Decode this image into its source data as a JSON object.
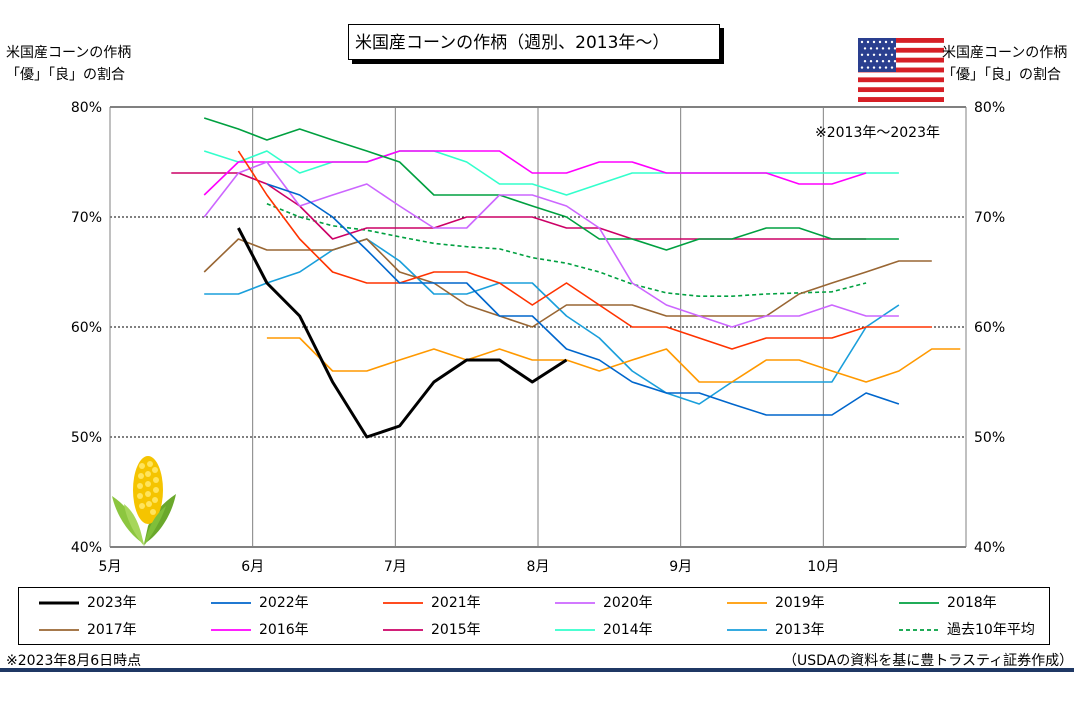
{
  "title": "米国産コーンの作柄（週別、2013年～）",
  "left_axis_title": [
    "米国産コーンの作柄",
    "「優」「良」の割合"
  ],
  "right_axis_title": [
    "米国産コーンの作柄",
    "「優」「良」の割合"
  ],
  "range_note": "※2013年～2023年",
  "asof_note": "※2023年8月6日時点",
  "source_note": "（USDAの資料を基に豊トラスティ証券作成）",
  "flag_icon": "us-flag-icon",
  "corn_icon": "corn-icon",
  "chart_data": {
    "type": "line",
    "title": "米国産コーンの作柄（週別、2013年～）",
    "xlabel": "",
    "ylabel": "米国産コーンの作柄「優」「良」の割合",
    "x_unit": "month",
    "xlim": [
      5,
      11
    ],
    "x_ticks": [
      5,
      6,
      7,
      8,
      9,
      10
    ],
    "x_tick_labels": [
      "5月",
      "6月",
      "7月",
      "8月",
      "9月",
      "10月"
    ],
    "ylim": [
      40,
      80
    ],
    "y_ticks": [
      40,
      50,
      60,
      70,
      80
    ],
    "y_tick_labels": [
      "40%",
      "50%",
      "60%",
      "70%",
      "80%"
    ],
    "grid": true,
    "series": [
      {
        "name": "2023年",
        "color": "#000000",
        "width": 3,
        "dash": false,
        "points": [
          [
            5.9,
            69
          ],
          [
            6.1,
            64
          ],
          [
            6.33,
            61
          ],
          [
            6.56,
            55
          ],
          [
            6.8,
            50
          ],
          [
            7.03,
            51
          ],
          [
            7.27,
            55
          ],
          [
            7.5,
            57
          ],
          [
            7.73,
            57
          ],
          [
            7.96,
            55
          ],
          [
            8.2,
            57
          ]
        ]
      },
      {
        "name": "2022年",
        "color": "#0066cc",
        "width": 1.6,
        "dash": false,
        "points": [
          [
            6.1,
            73
          ],
          [
            6.33,
            72
          ],
          [
            6.56,
            70
          ],
          [
            6.8,
            67
          ],
          [
            7.03,
            64
          ],
          [
            7.27,
            64
          ],
          [
            7.5,
            64
          ],
          [
            7.73,
            61
          ],
          [
            7.96,
            61
          ],
          [
            8.2,
            58
          ],
          [
            8.43,
            57
          ],
          [
            8.66,
            55
          ],
          [
            8.9,
            54
          ],
          [
            9.13,
            54
          ],
          [
            9.36,
            53
          ],
          [
            9.6,
            52
          ],
          [
            9.83,
            52
          ],
          [
            10.06,
            52
          ],
          [
            10.3,
            54
          ],
          [
            10.53,
            53
          ]
        ]
      },
      {
        "name": "2021年",
        "color": "#ff3300",
        "width": 1.6,
        "dash": false,
        "points": [
          [
            5.9,
            76
          ],
          [
            6.1,
            72
          ],
          [
            6.33,
            68
          ],
          [
            6.56,
            65
          ],
          [
            6.8,
            64
          ],
          [
            7.03,
            64
          ],
          [
            7.27,
            65
          ],
          [
            7.5,
            65
          ],
          [
            7.73,
            64
          ],
          [
            7.96,
            62
          ],
          [
            8.2,
            64
          ],
          [
            8.43,
            62
          ],
          [
            8.66,
            60
          ],
          [
            8.9,
            60
          ],
          [
            9.13,
            59
          ],
          [
            9.36,
            58
          ],
          [
            9.6,
            59
          ],
          [
            9.83,
            59
          ],
          [
            10.06,
            59
          ],
          [
            10.3,
            60
          ],
          [
            10.53,
            60
          ],
          [
            10.76,
            60
          ]
        ]
      },
      {
        "name": "2020年",
        "color": "#cc66ff",
        "width": 1.6,
        "dash": false,
        "points": [
          [
            5.66,
            70
          ],
          [
            5.9,
            74
          ],
          [
            6.1,
            75
          ],
          [
            6.33,
            71
          ],
          [
            6.56,
            72
          ],
          [
            6.8,
            73
          ],
          [
            7.03,
            71
          ],
          [
            7.27,
            69
          ],
          [
            7.5,
            69
          ],
          [
            7.73,
            72
          ],
          [
            7.96,
            72
          ],
          [
            8.2,
            71
          ],
          [
            8.43,
            69
          ],
          [
            8.66,
            64
          ],
          [
            8.9,
            62
          ],
          [
            9.13,
            61
          ],
          [
            9.36,
            60
          ],
          [
            9.6,
            61
          ],
          [
            9.83,
            61
          ],
          [
            10.06,
            62
          ],
          [
            10.3,
            61
          ],
          [
            10.53,
            61
          ]
        ]
      },
      {
        "name": "2019年",
        "color": "#ff9900",
        "width": 1.6,
        "dash": false,
        "points": [
          [
            6.1,
            59
          ],
          [
            6.33,
            59
          ],
          [
            6.56,
            56
          ],
          [
            6.8,
            56
          ],
          [
            7.03,
            57
          ],
          [
            7.27,
            58
          ],
          [
            7.5,
            57
          ],
          [
            7.73,
            58
          ],
          [
            7.96,
            57
          ],
          [
            8.2,
            57
          ],
          [
            8.43,
            56
          ],
          [
            8.66,
            57
          ],
          [
            8.9,
            58
          ],
          [
            9.13,
            55
          ],
          [
            9.36,
            55
          ],
          [
            9.6,
            57
          ],
          [
            9.83,
            57
          ],
          [
            10.06,
            56
          ],
          [
            10.3,
            55
          ],
          [
            10.53,
            56
          ],
          [
            10.76,
            58
          ],
          [
            10.96,
            58
          ]
        ]
      },
      {
        "name": "2018年",
        "color": "#00a040",
        "width": 1.6,
        "dash": false,
        "points": [
          [
            5.66,
            79
          ],
          [
            5.9,
            78
          ],
          [
            6.1,
            77
          ],
          [
            6.33,
            78
          ],
          [
            6.56,
            77
          ],
          [
            6.8,
            76
          ],
          [
            7.03,
            75
          ],
          [
            7.27,
            72
          ],
          [
            7.5,
            72
          ],
          [
            7.73,
            72
          ],
          [
            7.96,
            71
          ],
          [
            8.2,
            70
          ],
          [
            8.43,
            68
          ],
          [
            8.66,
            68
          ],
          [
            8.9,
            67
          ],
          [
            9.13,
            68
          ],
          [
            9.36,
            68
          ],
          [
            9.6,
            69
          ],
          [
            9.83,
            69
          ],
          [
            10.06,
            68
          ],
          [
            10.3,
            68
          ],
          [
            10.53,
            68
          ]
        ]
      },
      {
        "name": "2017年",
        "color": "#996633",
        "width": 1.6,
        "dash": false,
        "points": [
          [
            5.66,
            65
          ],
          [
            5.9,
            68
          ],
          [
            6.1,
            67
          ],
          [
            6.33,
            67
          ],
          [
            6.56,
            67
          ],
          [
            6.8,
            68
          ],
          [
            7.03,
            65
          ],
          [
            7.27,
            64
          ],
          [
            7.5,
            62
          ],
          [
            7.73,
            61
          ],
          [
            7.96,
            60
          ],
          [
            8.2,
            62
          ],
          [
            8.43,
            62
          ],
          [
            8.66,
            62
          ],
          [
            8.9,
            61
          ],
          [
            9.13,
            61
          ],
          [
            9.36,
            61
          ],
          [
            9.6,
            61
          ],
          [
            9.83,
            63
          ],
          [
            10.06,
            64
          ],
          [
            10.3,
            65
          ],
          [
            10.53,
            66
          ],
          [
            10.76,
            66
          ]
        ]
      },
      {
        "name": "2016年",
        "color": "#ff00ff",
        "width": 1.6,
        "dash": false,
        "points": [
          [
            5.66,
            72
          ],
          [
            5.9,
            75
          ],
          [
            6.1,
            75
          ],
          [
            6.33,
            75
          ],
          [
            6.56,
            75
          ],
          [
            6.8,
            75
          ],
          [
            7.03,
            76
          ],
          [
            7.27,
            76
          ],
          [
            7.5,
            76
          ],
          [
            7.73,
            76
          ],
          [
            7.96,
            74
          ],
          [
            8.2,
            74
          ],
          [
            8.43,
            75
          ],
          [
            8.66,
            75
          ],
          [
            8.9,
            74
          ],
          [
            9.13,
            74
          ],
          [
            9.36,
            74
          ],
          [
            9.6,
            74
          ],
          [
            9.83,
            73
          ],
          [
            10.06,
            73
          ],
          [
            10.3,
            74
          ]
        ]
      },
      {
        "name": "2015年",
        "color": "#cc0066",
        "width": 1.6,
        "dash": false,
        "points": [
          [
            5.43,
            74
          ],
          [
            5.66,
            74
          ],
          [
            5.9,
            74
          ],
          [
            6.1,
            73
          ],
          [
            6.33,
            71
          ],
          [
            6.56,
            68
          ],
          [
            6.8,
            69
          ],
          [
            7.03,
            69
          ],
          [
            7.27,
            69
          ],
          [
            7.5,
            70
          ],
          [
            7.73,
            70
          ],
          [
            7.96,
            70
          ],
          [
            8.2,
            69
          ],
          [
            8.43,
            69
          ],
          [
            8.66,
            68
          ],
          [
            8.9,
            68
          ],
          [
            9.13,
            68
          ],
          [
            9.36,
            68
          ],
          [
            9.6,
            68
          ],
          [
            9.83,
            68
          ],
          [
            10.06,
            68
          ],
          [
            10.3,
            68
          ]
        ]
      },
      {
        "name": "2014年",
        "color": "#33ffcc",
        "width": 1.6,
        "dash": false,
        "points": [
          [
            5.66,
            76
          ],
          [
            5.9,
            75
          ],
          [
            6.1,
            76
          ],
          [
            6.33,
            74
          ],
          [
            6.56,
            75
          ],
          [
            6.8,
            75
          ],
          [
            7.03,
            76
          ],
          [
            7.27,
            76
          ],
          [
            7.5,
            75
          ],
          [
            7.73,
            73
          ],
          [
            7.96,
            73
          ],
          [
            8.2,
            72
          ],
          [
            8.43,
            73
          ],
          [
            8.66,
            74
          ],
          [
            8.9,
            74
          ],
          [
            9.13,
            74
          ],
          [
            9.36,
            74
          ],
          [
            9.6,
            74
          ],
          [
            9.83,
            74
          ],
          [
            10.06,
            74
          ],
          [
            10.3,
            74
          ],
          [
            10.53,
            74
          ]
        ]
      },
      {
        "name": "2013年",
        "color": "#1a9fdb",
        "width": 1.6,
        "dash": false,
        "points": [
          [
            5.66,
            63
          ],
          [
            5.9,
            63
          ],
          [
            6.1,
            64
          ],
          [
            6.33,
            65
          ],
          [
            6.56,
            67
          ],
          [
            6.8,
            68
          ],
          [
            7.03,
            66
          ],
          [
            7.27,
            63
          ],
          [
            7.5,
            63
          ],
          [
            7.73,
            64
          ],
          [
            7.96,
            64
          ],
          [
            8.2,
            61
          ],
          [
            8.43,
            59
          ],
          [
            8.66,
            56
          ],
          [
            8.9,
            54
          ],
          [
            9.13,
            53
          ],
          [
            9.36,
            55
          ],
          [
            9.6,
            55
          ],
          [
            9.83,
            55
          ],
          [
            10.06,
            55
          ],
          [
            10.3,
            60
          ],
          [
            10.53,
            62
          ]
        ]
      },
      {
        "name": "過去10年平均",
        "color": "#00a040",
        "width": 1.6,
        "dash": true,
        "points": [
          [
            6.1,
            71.2
          ],
          [
            6.33,
            70
          ],
          [
            6.56,
            69.2
          ],
          [
            6.8,
            68.8
          ],
          [
            7.03,
            68.2
          ],
          [
            7.27,
            67.6
          ],
          [
            7.5,
            67.3
          ],
          [
            7.73,
            67.1
          ],
          [
            7.96,
            66.3
          ],
          [
            8.2,
            65.8
          ],
          [
            8.43,
            65
          ],
          [
            8.66,
            63.9
          ],
          [
            8.9,
            63.1
          ],
          [
            9.13,
            62.8
          ],
          [
            9.36,
            62.8
          ],
          [
            9.6,
            63
          ],
          [
            9.83,
            63.1
          ],
          [
            10.06,
            63.2
          ],
          [
            10.3,
            64
          ]
        ]
      }
    ]
  }
}
